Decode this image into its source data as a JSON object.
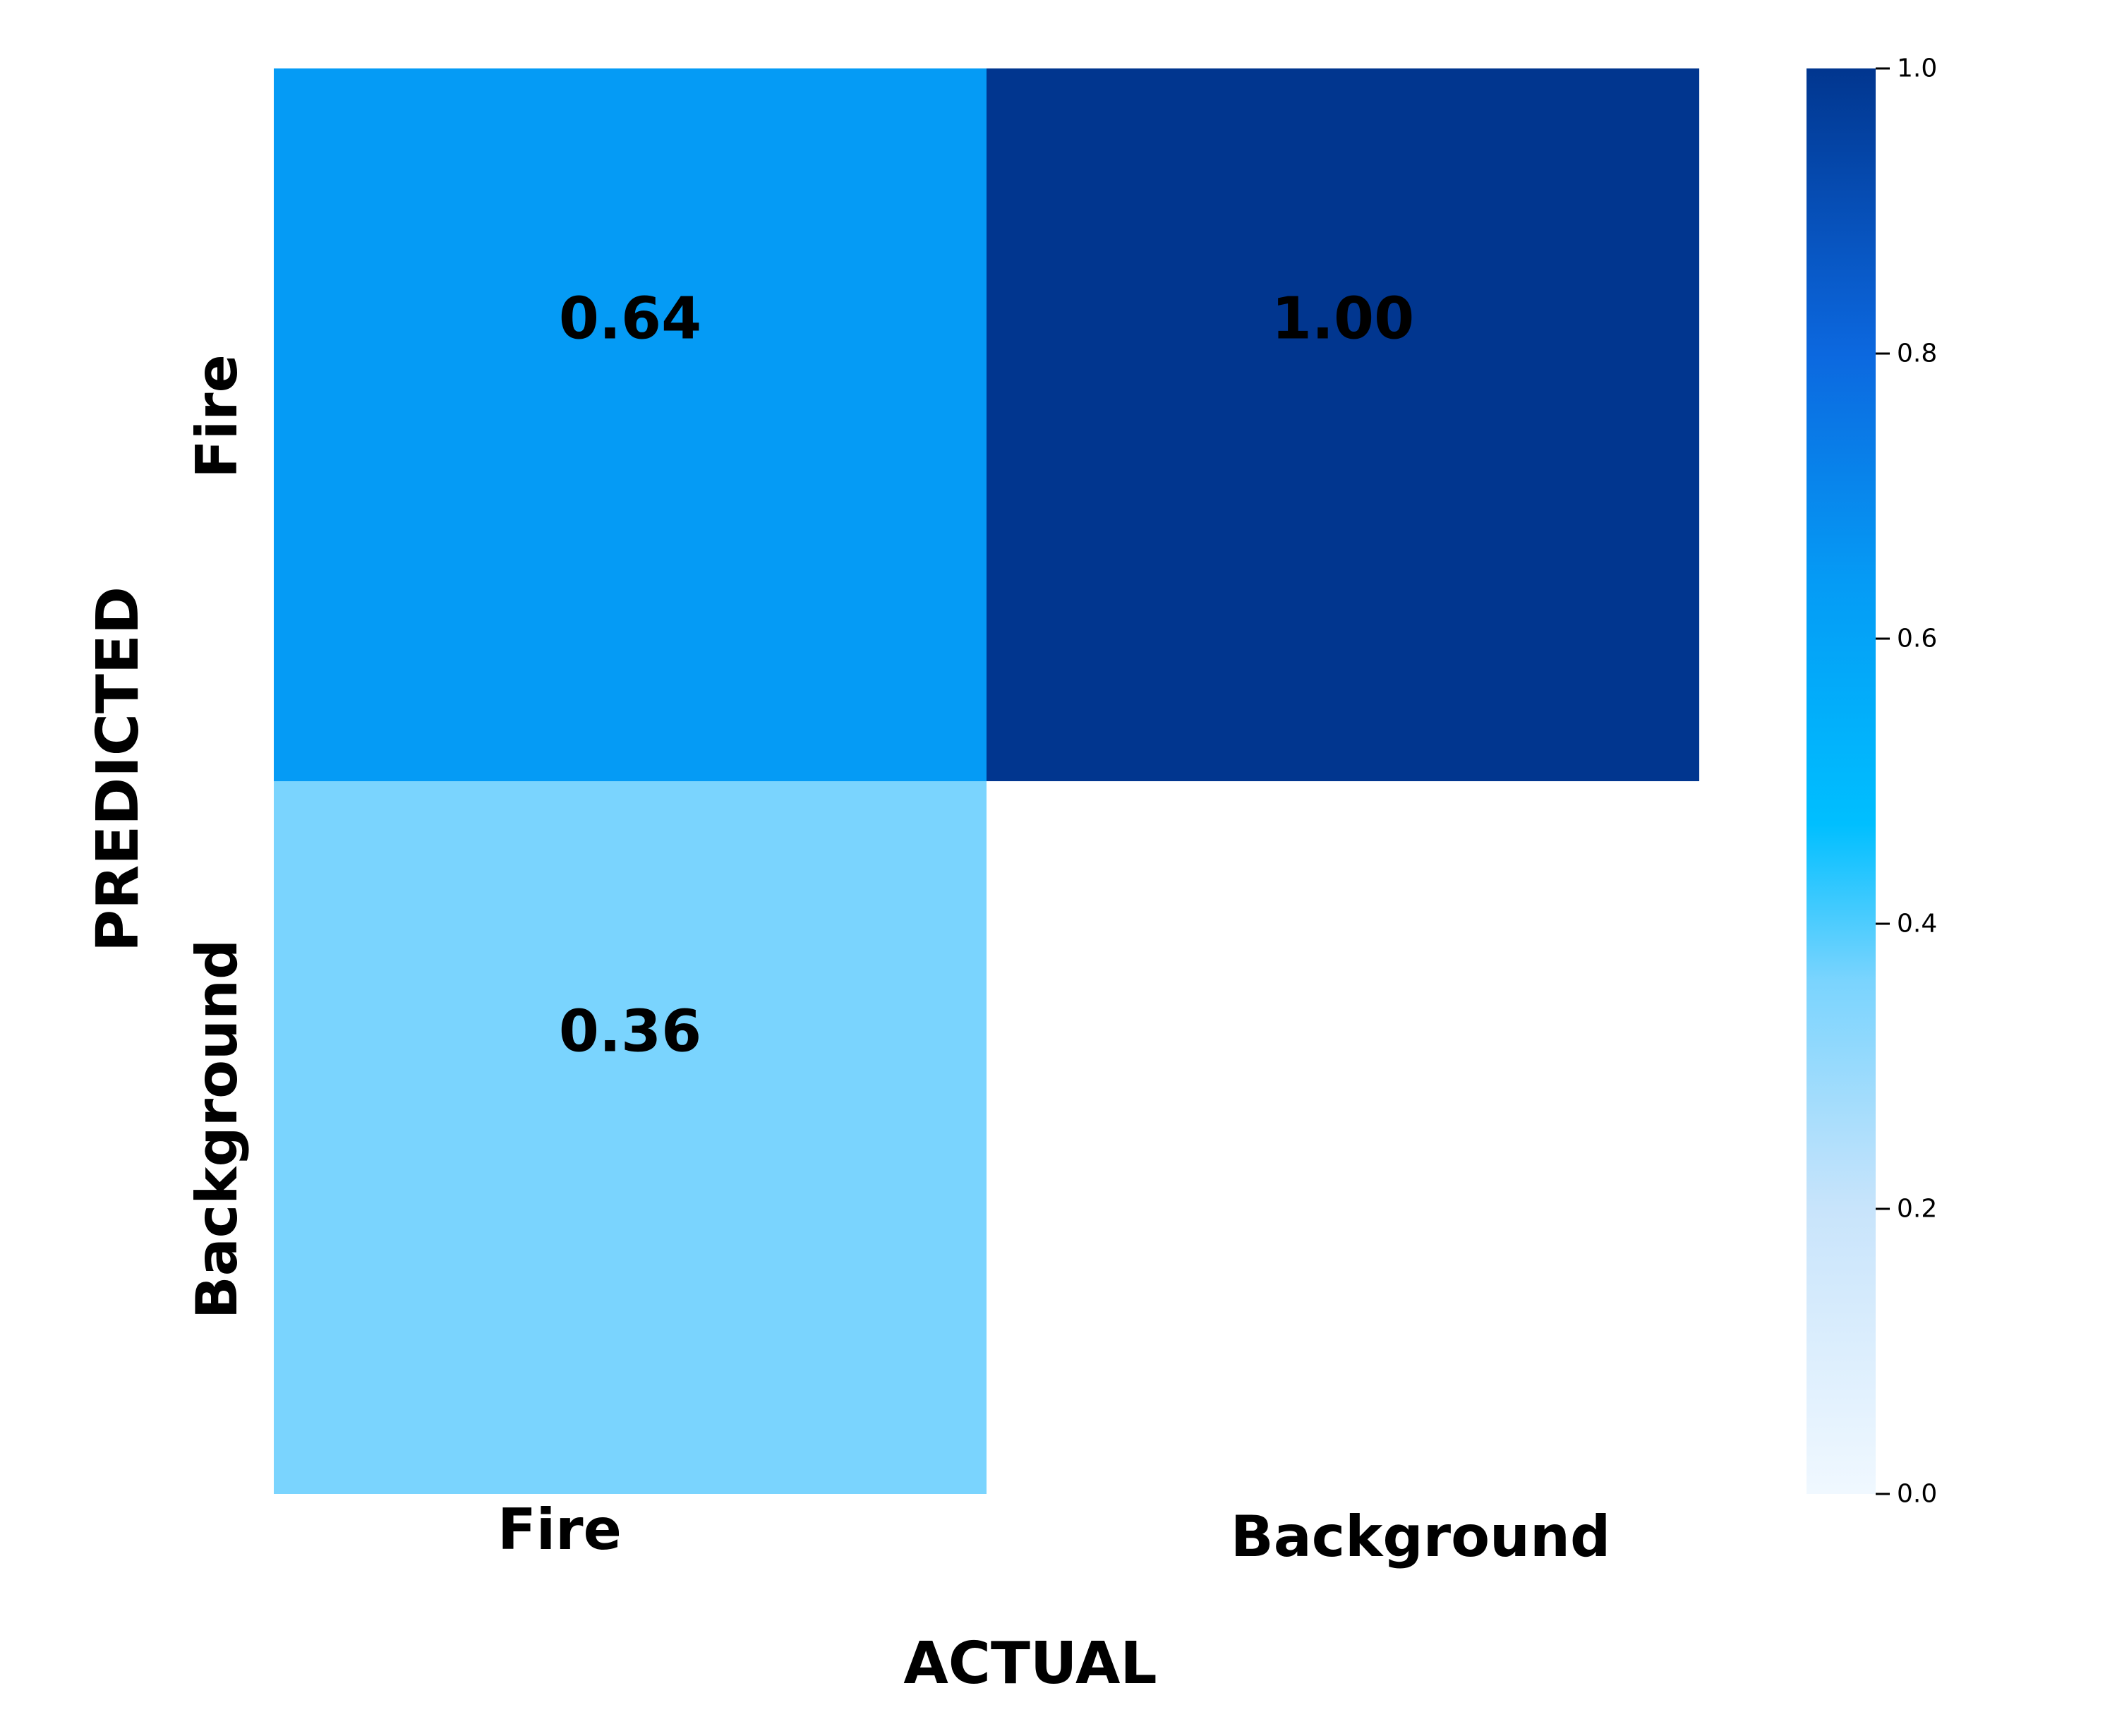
{
  "chart_data": {
    "type": "heatmap",
    "xlabel": "ACTUAL",
    "ylabel": "PREDICTED",
    "x_categories": [
      "Fire",
      "Background"
    ],
    "y_categories": [
      "Fire",
      "Background"
    ],
    "values": [
      [
        0.64,
        1.0
      ],
      [
        0.36,
        0.0
      ]
    ],
    "cell_labels": [
      [
        "0.64",
        "1.00"
      ],
      [
        "0.36",
        ""
      ]
    ],
    "colorbar": {
      "range": [
        0.0,
        1.0
      ],
      "ticks": [
        0.0,
        0.2,
        0.4,
        0.6,
        0.8,
        1.0
      ],
      "tick_labels": [
        "0.0",
        "0.2",
        "0.4",
        "0.6",
        "0.8",
        "1.0"
      ],
      "position": "right"
    },
    "colormap": [
      {
        "stop": 0.0,
        "color": "#f0f8ff"
      },
      {
        "stop": 0.2,
        "color": "#c8e4fb"
      },
      {
        "stop": 0.36,
        "color": "#7ad4fe"
      },
      {
        "stop": 0.47,
        "color": "#00bfff"
      },
      {
        "stop": 0.64,
        "color": "#059bf5"
      },
      {
        "stop": 0.8,
        "color": "#0c68df"
      },
      {
        "stop": 1.0,
        "color": "#01368f"
      }
    ],
    "grid": false
  }
}
